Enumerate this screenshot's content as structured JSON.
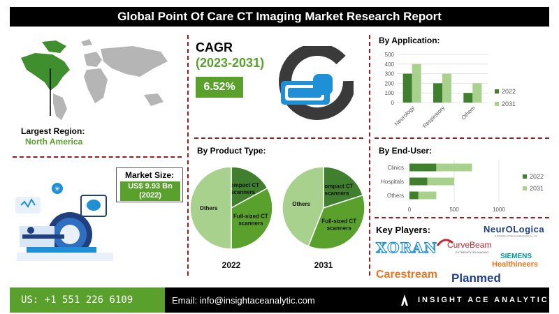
{
  "title": "Global Point Of Care CT Imaging Market Research Report",
  "region": {
    "label": "Largest Region:",
    "value": "North America"
  },
  "cagr": {
    "title": "CAGR",
    "period": "(2023-2031)",
    "value": "6.52%"
  },
  "market_size": {
    "label": "Market Size:",
    "value_line1": "US$ 9.93 Bn",
    "value_line2": "(2022)"
  },
  "sections": {
    "application": "By Application:",
    "product": "By Product Type:",
    "end_user": "By End-User:",
    "key_players": "Key Players:"
  },
  "key_players": [
    "NeurOLogica",
    "A Subsidiary of Samsung Electronics Co., Ltd",
    "XORAN",
    "CurveBeam",
    "EXTREMITY 3D IMAGING",
    "SIEMENS",
    "Healthineers",
    "Carestream",
    "Planmed"
  ],
  "footer": {
    "phone": "US: +1 551 226 6109",
    "email": "Email: info@insightaceanalytic.com",
    "brand": "INSIGHT ACE ANALYTIC"
  },
  "colors": {
    "dark_green": "#3f7f2e",
    "light_green": "#a9d18e",
    "mid_green": "#5aa02c",
    "accent_red": "#9b1b1b",
    "brand_blue": "#1f8fd6"
  },
  "chart_data": [
    {
      "type": "bar",
      "title": "By Application:",
      "categories": [
        "Neurology",
        "Respiratory",
        "Others"
      ],
      "series": [
        {
          "name": "2022",
          "values": [
            300,
            200,
            100
          ],
          "color": "#3f7f2e"
        },
        {
          "name": "2031",
          "values": [
            400,
            300,
            200
          ],
          "color": "#a9d18e"
        }
      ],
      "ylim": [
        0,
        500
      ],
      "yticks": [
        0,
        100,
        200,
        300,
        400,
        500
      ],
      "legend": "right"
    },
    {
      "type": "pie",
      "title": "2022",
      "labels": [
        "Compact CT scanners",
        "Full-sized CT scanners",
        "Others"
      ],
      "values": [
        17,
        33,
        50
      ],
      "colors": [
        "#3f7f2e",
        "#5aa02c",
        "#a9d18e"
      ]
    },
    {
      "type": "pie",
      "title": "2031",
      "labels": [
        "Compact CT scanners",
        "Full-sized CT scanners",
        "Others"
      ],
      "values": [
        20,
        36,
        44
      ],
      "colors": [
        "#3f7f2e",
        "#5aa02c",
        "#a9d18e"
      ]
    },
    {
      "type": "bar",
      "orientation": "horizontal",
      "stacked": true,
      "title": "By End-User:",
      "categories": [
        "Clinics",
        "Hospitals",
        "Others"
      ],
      "series": [
        {
          "name": "2022",
          "values": [
            300,
            200,
            100
          ],
          "color": "#3f7f2e"
        },
        {
          "name": "2031",
          "values": [
            400,
            300,
            200
          ],
          "color": "#a9d18e"
        }
      ],
      "xlim": [
        0,
        1000
      ],
      "xticks": [
        0,
        500,
        1000
      ],
      "legend": "right"
    }
  ]
}
